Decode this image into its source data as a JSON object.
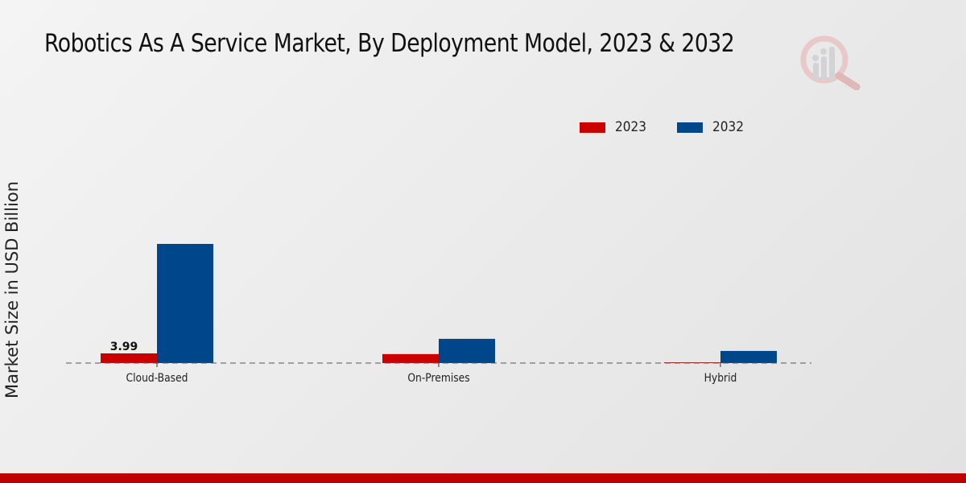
{
  "title": "Robotics As A Service Market, By Deployment Model, 2023 & 2032",
  "logo_icon": "market-research-magnifier-logo-icon",
  "colors": {
    "series_2023": "#cc0000",
    "series_2032": "#00468b",
    "footer": "#c00000"
  },
  "chart_data": {
    "type": "bar",
    "title": "Robotics As A Service Market, By Deployment Model, 2023 & 2032",
    "xlabel": "",
    "ylabel": "Market Size in USD Billion",
    "categories": [
      "Cloud-Based",
      "On-Premises",
      "Hybrid"
    ],
    "series": [
      {
        "name": "2023",
        "color": "#cc0000",
        "values": [
          3.99,
          3.7,
          0.3
        ]
      },
      {
        "name": "2032",
        "color": "#00468b",
        "values": [
          49.2,
          10.0,
          5.0
        ]
      }
    ],
    "data_labels": [
      {
        "series": "2023",
        "category": "Cloud-Based",
        "text": "3.99"
      }
    ],
    "ylim": [
      0,
      55
    ],
    "grid": false,
    "baseline": "dashed",
    "legend_position": "top-right"
  }
}
